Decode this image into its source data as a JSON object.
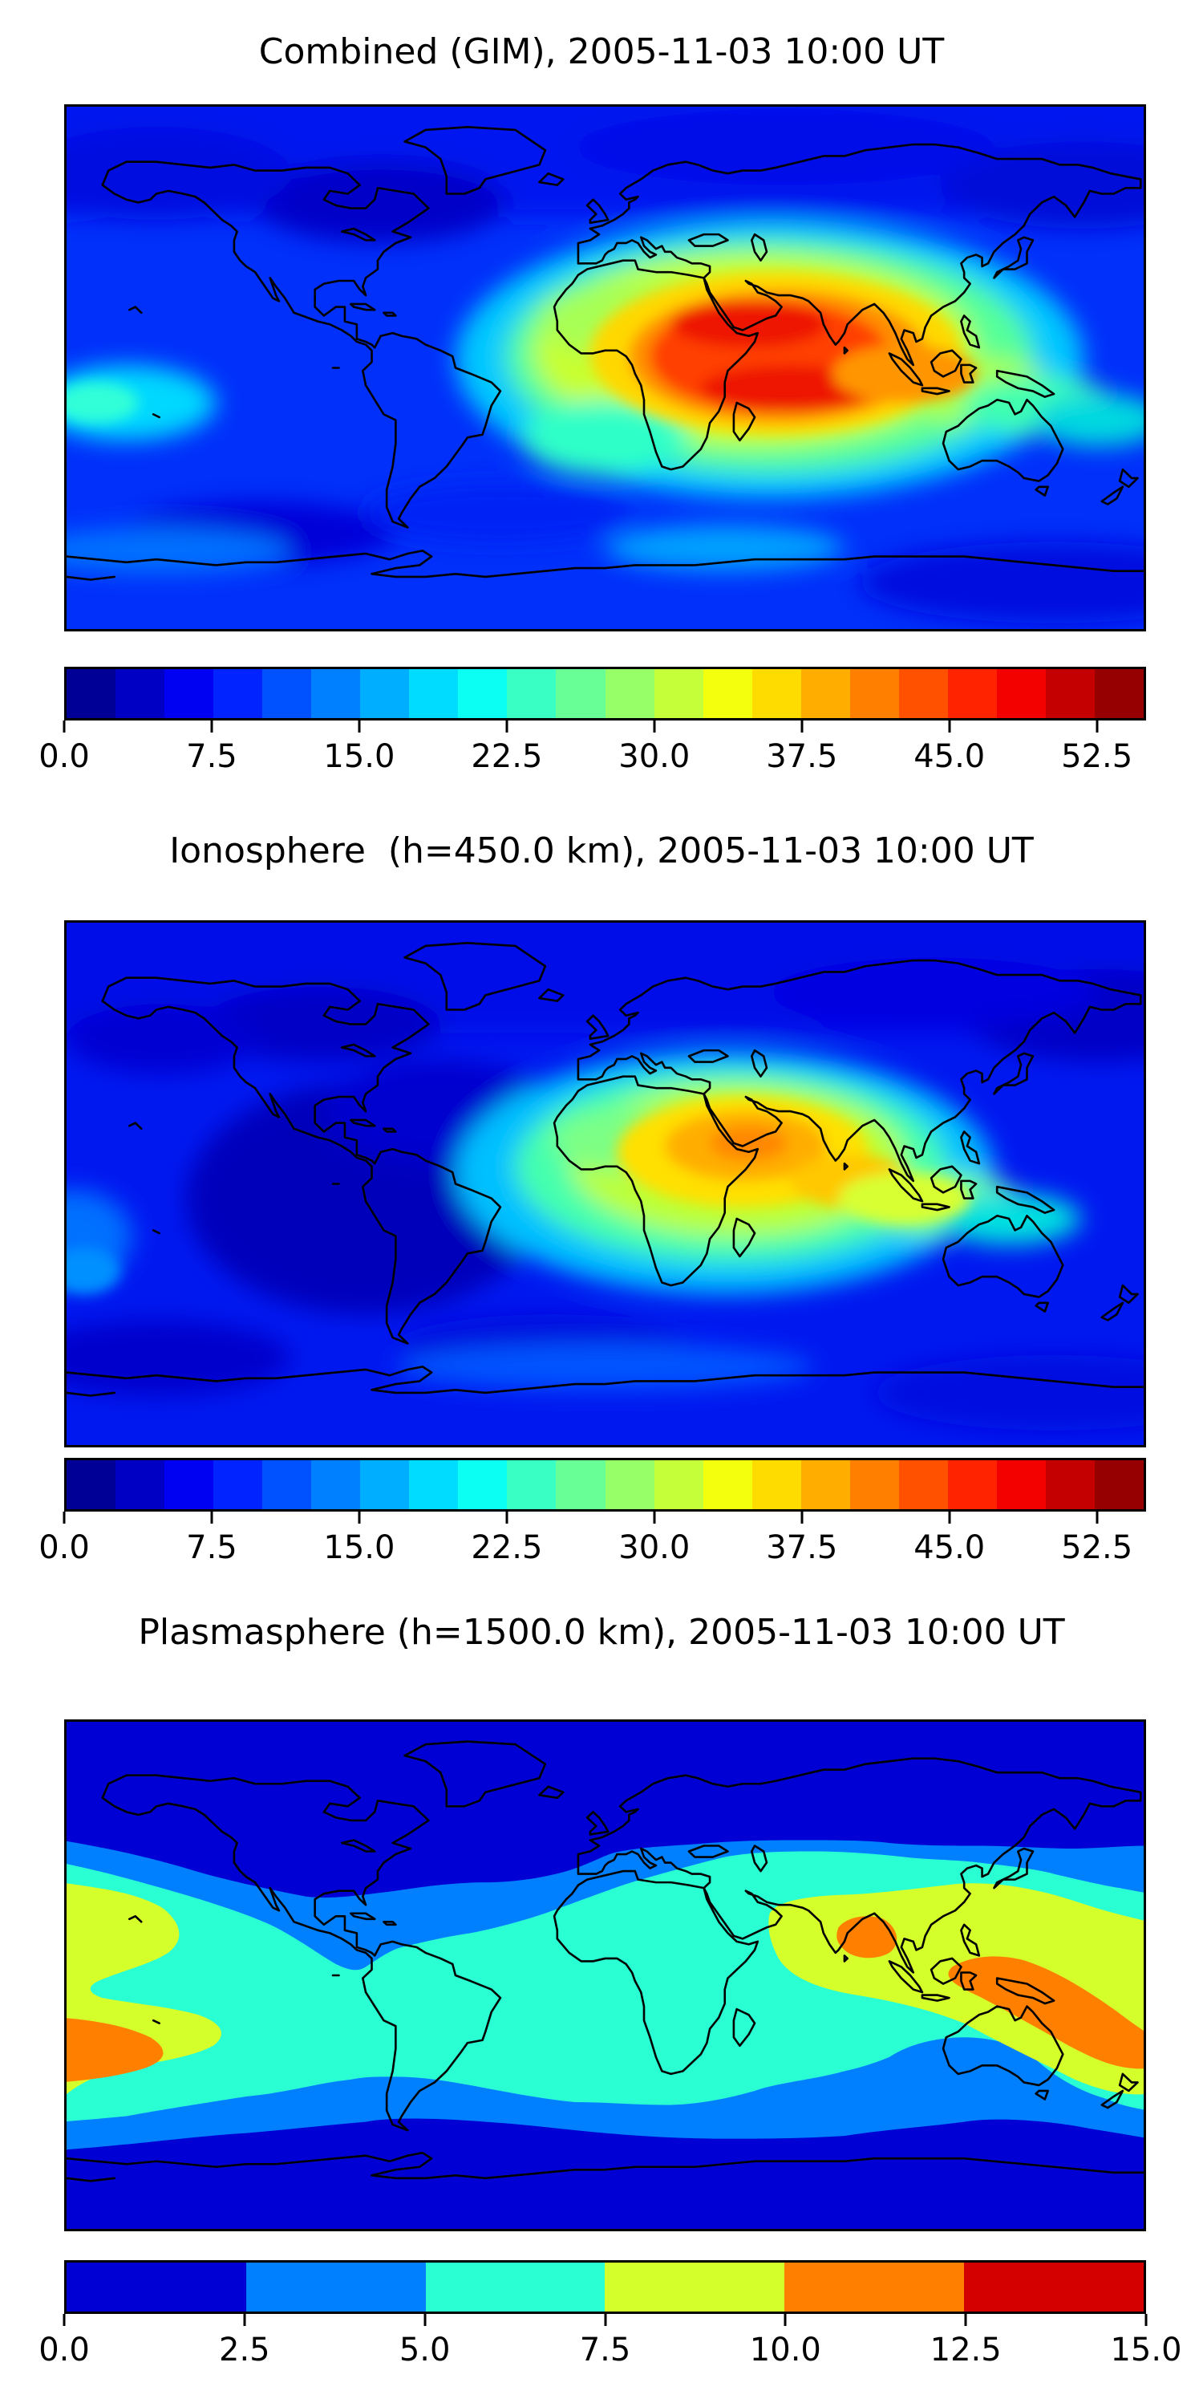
{
  "figure": {
    "background": "#ffffff",
    "coastline_color": "#000000",
    "description": "Three stacked global total electron content contour maps (equirectangular world projection, lon -180..180, lat -90..90) with discrete jet colorbars"
  },
  "chart_data": [
    {
      "type": "heatmap",
      "title": "Combined (GIM), 2005-11-03 10:00 UT",
      "projection": "equirectangular world map, black coastlines, no axis ticks",
      "colormap": "jet, discrete filled contours",
      "vmin": 0,
      "vmax": 55,
      "level_step": 2.5,
      "legend_position": "horizontal colorbar below map",
      "colorbar_ticks": [
        {
          "value": 0,
          "label": "0.0"
        },
        {
          "value": 7.5,
          "label": "7.5"
        },
        {
          "value": 15,
          "label": "15.0"
        },
        {
          "value": 22.5,
          "label": "22.5"
        },
        {
          "value": 30,
          "label": "30.0"
        },
        {
          "value": 37.5,
          "label": "37.5"
        },
        {
          "value": 45,
          "label": "45.0"
        },
        {
          "value": 52.5,
          "label": "52.5"
        }
      ],
      "colorbar_colors": [
        "#000097",
        "#0000c5",
        "#0000f3",
        "#0023ff",
        "#0051ff",
        "#0080ff",
        "#00aeff",
        "#00dcff",
        "#0cfff3",
        "#3affc5",
        "#68ff97",
        "#97ff68",
        "#c5ff3a",
        "#f3ff0c",
        "#ffdc00",
        "#ffae00",
        "#ff8000",
        "#ff5100",
        "#ff2300",
        "#f30000",
        "#c50000",
        "#970000"
      ],
      "features": [
        {
          "name": "primary-maximum",
          "value": "47-52",
          "location": "Arabian Peninsula / Arabian Sea, ~lat 10-20N, lon 30-75E"
        },
        {
          "name": "equatorial-maximum",
          "value": "45-50",
          "location": "equatorial Indian Ocean, ~lat -3..-15, lon 35-95E"
        },
        {
          "name": "orange-envelope",
          "value": "37-45",
          "location": "Africa to SE Asia, lat -20..25"
        },
        {
          "name": "warm-tail",
          "value": "30-40",
          "location": "Indonesia / western Pacific near equator"
        },
        {
          "name": "pacific-enhancement",
          "value": "17-22",
          "location": "central equatorial Pacific, lon ~-165, lat ~-12"
        },
        {
          "name": "minima",
          "value": "2.5-7.5",
          "location": "NE Canada / Labrador, Arctic, southeast Pacific ~lat -55"
        },
        {
          "name": "background",
          "value": "10-15",
          "location": "mid-latitude oceans"
        }
      ]
    },
    {
      "type": "heatmap",
      "title": "Ionosphere  (h=450.0 km), 2005-11-03 10:00 UT",
      "projection": "equirectangular world map, black coastlines, no axis ticks",
      "colormap": "jet, discrete filled contours",
      "vmin": 0,
      "vmax": 55,
      "level_step": 2.5,
      "legend_position": "horizontal colorbar below map",
      "colorbar_ticks": [
        {
          "value": 0,
          "label": "0.0"
        },
        {
          "value": 7.5,
          "label": "7.5"
        },
        {
          "value": 15,
          "label": "15.0"
        },
        {
          "value": 22.5,
          "label": "22.5"
        },
        {
          "value": 30,
          "label": "30.0"
        },
        {
          "value": 37.5,
          "label": "37.5"
        },
        {
          "value": 45,
          "label": "45.0"
        },
        {
          "value": 52.5,
          "label": "52.5"
        }
      ],
      "colorbar_colors": [
        "#000097",
        "#0000c5",
        "#0000f3",
        "#0023ff",
        "#0051ff",
        "#0080ff",
        "#00aeff",
        "#00dcff",
        "#0cfff3",
        "#3affc5",
        "#68ff97",
        "#97ff68",
        "#c5ff3a",
        "#f3ff0c",
        "#ffdc00",
        "#ffae00",
        "#ff8000",
        "#ff5100",
        "#ff2300",
        "#f30000",
        "#c50000",
        "#970000"
      ],
      "features": [
        {
          "name": "primary-maximum",
          "value": "40-43",
          "location": "Arabian Peninsula / Gulf of Aden, ~lat 12-16N, lon 40-60E"
        },
        {
          "name": "secondary-maximum",
          "value": "35-40",
          "location": "equatorial Indian Ocean south of India"
        },
        {
          "name": "warm-ridge",
          "value": "25-35",
          "location": "central Africa to SE Asia"
        },
        {
          "name": "deep-minimum",
          "value": "0-5",
          "location": "South America, east Pacific and west Atlantic"
        },
        {
          "name": "left-edge-patch",
          "value": "10-15",
          "location": "south-central Pacific, lon -180..-160, lat -10..-35"
        },
        {
          "name": "background",
          "value": "5-10",
          "location": "mid and high latitudes"
        }
      ]
    },
    {
      "type": "heatmap",
      "title": "Plasmasphere (h=1500.0 km), 2005-11-03 10:00 UT",
      "projection": "equirectangular world map, black coastlines, no axis ticks",
      "colormap": "jet, discrete filled contours (6 levels)",
      "vmin": 0,
      "vmax": 15,
      "level_step": 2.5,
      "legend_position": "horizontal colorbar below map",
      "colorbar_ticks": [
        {
          "value": 0,
          "label": "0.0"
        },
        {
          "value": 2.5,
          "label": "2.5"
        },
        {
          "value": 5,
          "label": "5.0"
        },
        {
          "value": 7.5,
          "label": "7.5"
        },
        {
          "value": 10,
          "label": "10.0"
        },
        {
          "value": 12.5,
          "label": "12.5"
        },
        {
          "value": 15,
          "label": "15.0"
        }
      ],
      "colorbar_colors": [
        "#0000d4",
        "#0080ff",
        "#2affd4",
        "#d4ff2a",
        "#ff8000",
        "#d40000"
      ],
      "features": [
        {
          "name": "band-0-2.5",
          "color": "#0000d4",
          "location": "high latitudes, poleward of ~45-55 deg"
        },
        {
          "name": "band-2.5-5",
          "color": "#0080ff",
          "location": "mid latitudes; tongue dipping equatorward over Central America / Caribbean"
        },
        {
          "name": "band-5-7.5",
          "color": "#2affd4",
          "location": "low latitudes and tropics"
        },
        {
          "name": "band-7.5-10",
          "color": "#d4ff2a",
          "location": "S-shaped north/central Pacific blob at west edge; South Asia to west Pacific ridge"
        },
        {
          "name": "band-10-12.5",
          "color": "#ff8000",
          "location": "south-central Pacific at left edge (~lat -18..-38), Bay of Bengal, Indonesia to Melanesia"
        },
        {
          "name": "band-12.5-15",
          "color": "#d40000",
          "location": "colorbar only, not reached on map"
        }
      ]
    }
  ]
}
